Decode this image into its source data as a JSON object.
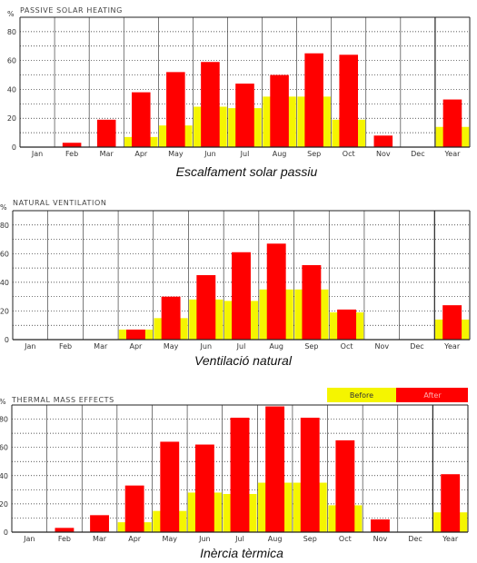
{
  "colors": {
    "before": "#f5f500",
    "after": "#ff0000",
    "grid": "#222222"
  },
  "legend": {
    "position": "top-right",
    "before_label": "Before",
    "after_label": "After"
  },
  "chart_data": [
    {
      "type": "bar",
      "title": "PASSIVE SOLAR HEATING",
      "caption": "Escalfament solar passiu",
      "ylabel": "%",
      "ylim": [
        0,
        90
      ],
      "yticks": [
        "0",
        "20",
        "40",
        "60",
        "80"
      ],
      "grid": true,
      "categories": [
        "Jan",
        "Feb",
        "Mar",
        "Apr",
        "May",
        "Jun",
        "Jul",
        "Aug",
        "Sep",
        "Oct",
        "Nov",
        "Dec",
        "Year"
      ],
      "series": [
        {
          "name": "Before",
          "values": [
            0,
            0,
            0,
            7,
            15,
            28,
            27,
            35,
            35,
            19,
            0,
            0,
            14
          ]
        },
        {
          "name": "After",
          "values": [
            0,
            3,
            19,
            38,
            52,
            59,
            44,
            50,
            65,
            64,
            8,
            0,
            33
          ]
        }
      ]
    },
    {
      "type": "bar",
      "title": "NATURAL VENTILATION",
      "caption": "Ventilació natural",
      "ylabel": "%",
      "ylim": [
        0,
        90
      ],
      "yticks": [
        "0",
        "20",
        "40",
        "60",
        "80"
      ],
      "grid": true,
      "categories": [
        "Jan",
        "Feb",
        "Mar",
        "Apr",
        "May",
        "Jun",
        "Jul",
        "Aug",
        "Sep",
        "Oct",
        "Nov",
        "Dec",
        "Year"
      ],
      "series": [
        {
          "name": "Before",
          "values": [
            0,
            0,
            0,
            7,
            15,
            28,
            27,
            35,
            35,
            19,
            0,
            0,
            14
          ]
        },
        {
          "name": "After",
          "values": [
            0,
            0,
            0,
            7,
            30,
            45,
            61,
            67,
            52,
            21,
            0,
            0,
            24
          ]
        }
      ]
    },
    {
      "type": "bar",
      "title": "THERMAL MASS EFFECTS",
      "caption": "Inèrcia tèrmica",
      "ylabel": "%",
      "ylim": [
        0,
        90
      ],
      "yticks": [
        "0",
        "20",
        "40",
        "60",
        "80"
      ],
      "grid": true,
      "categories": [
        "Jan",
        "Feb",
        "Mar",
        "Apr",
        "May",
        "Jun",
        "Jul",
        "Aug",
        "Sep",
        "Oct",
        "Nov",
        "Dec",
        "Year"
      ],
      "series": [
        {
          "name": "Before",
          "values": [
            0,
            0,
            0,
            7,
            15,
            28,
            27,
            35,
            35,
            19,
            0,
            0,
            14
          ]
        },
        {
          "name": "After",
          "values": [
            0,
            3,
            12,
            33,
            64,
            62,
            81,
            89,
            81,
            65,
            9,
            0,
            41
          ]
        }
      ]
    }
  ]
}
